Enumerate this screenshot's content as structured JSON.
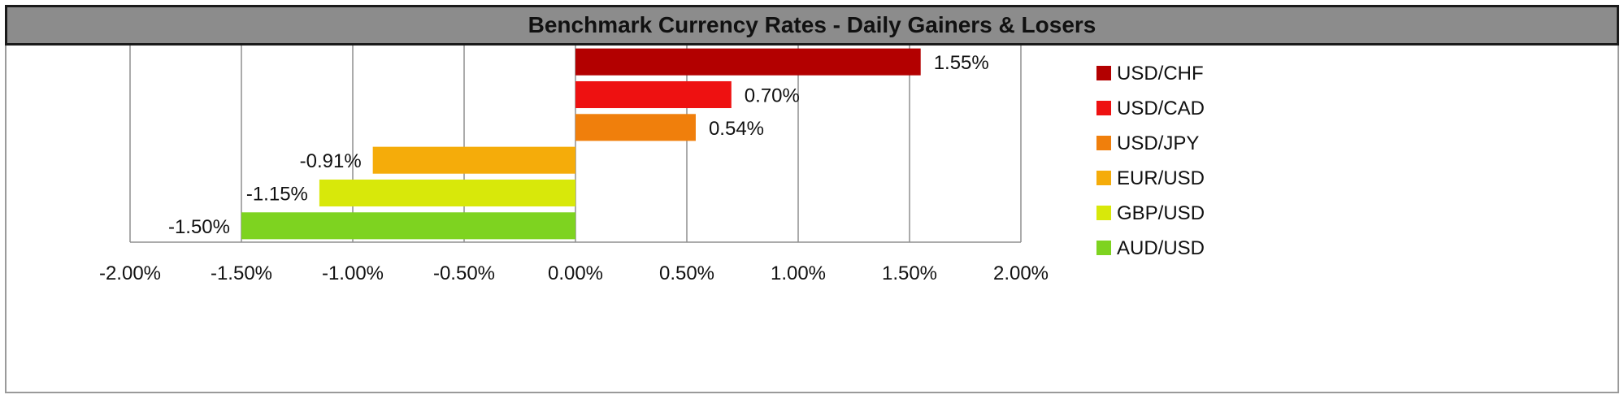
{
  "chart_data": {
    "type": "bar",
    "orientation": "horizontal",
    "title": "Benchmark Currency Rates - Daily Gainers & Losers",
    "categories": [
      "USD/CHF",
      "USD/CAD",
      "USD/JPY",
      "EUR/USD",
      "GBP/USD",
      "AUD/USD"
    ],
    "values": [
      1.55,
      0.7,
      0.54,
      -0.91,
      -1.15,
      -1.5
    ],
    "data_labels": [
      "1.55%",
      "0.70%",
      "0.54%",
      "-0.91%",
      "-1.15%",
      "-1.50%"
    ],
    "colors": [
      "#b30000",
      "#ee1111",
      "#f07f0c",
      "#f5ac0a",
      "#d8e80a",
      "#7ed320"
    ],
    "xlim": [
      -2.0,
      2.0
    ],
    "x_ticks": [
      -2.0,
      -1.5,
      -1.0,
      -0.5,
      0.0,
      0.5,
      1.0,
      1.5,
      2.0
    ],
    "x_tick_labels": [
      "-2.00%",
      "-1.50%",
      "-1.00%",
      "-0.50%",
      "0.00%",
      "0.50%",
      "1.00%",
      "1.50%",
      "2.00%"
    ],
    "xlabel": "",
    "ylabel": "",
    "grid": "vertical",
    "legend_position": "right"
  }
}
